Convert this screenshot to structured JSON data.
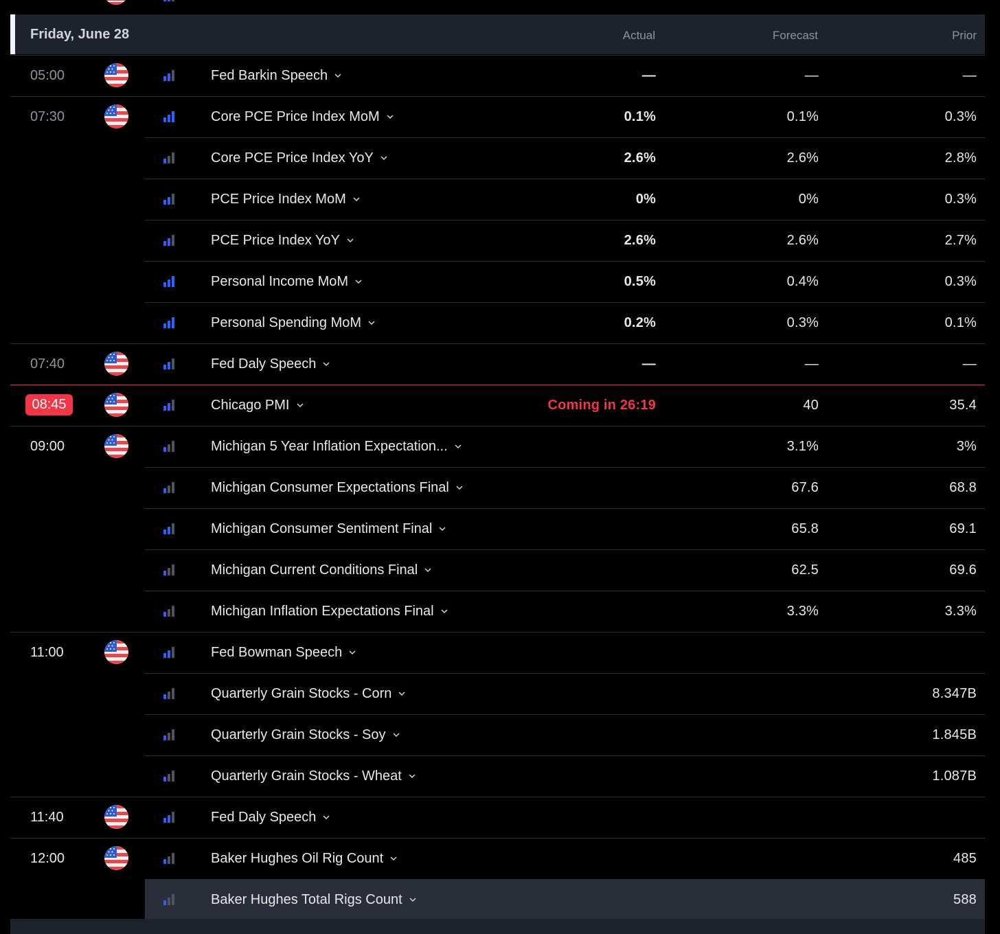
{
  "header": {
    "date": "Friday, June 28",
    "col_actual": "Actual",
    "col_forecast": "Forecast",
    "col_prior": "Prior"
  },
  "colors": {
    "background": "#000000",
    "header_bg": "#1e222d",
    "separator": "#2a2e39",
    "current_time": "#f23645",
    "importance_high": "#2962ff",
    "importance_low": "#50535e"
  },
  "rows": [
    {
      "time": "05:00",
      "flag": "us-flag-icon",
      "importance": 2,
      "event": "Fed Barkin Speech",
      "actual": "—",
      "forecast": "—",
      "prior": "—"
    },
    {
      "time": "07:30",
      "flag": "us-flag-icon",
      "importance": 3,
      "event": "Core PCE Price Index MoM",
      "actual": "0.1%",
      "forecast": "0.1%",
      "prior": "0.3%"
    },
    {
      "time": "",
      "importance": 1,
      "event": "Core PCE Price Index YoY",
      "actual": "2.6%",
      "forecast": "2.6%",
      "prior": "2.8%"
    },
    {
      "time": "",
      "importance": 2,
      "event": "PCE Price Index MoM",
      "actual": "0%",
      "forecast": "0%",
      "prior": "0.3%"
    },
    {
      "time": "",
      "importance": 2,
      "event": "PCE Price Index YoY",
      "actual": "2.6%",
      "forecast": "2.6%",
      "prior": "2.7%"
    },
    {
      "time": "",
      "importance": 3,
      "event": "Personal Income MoM",
      "actual": "0.5%",
      "forecast": "0.4%",
      "prior": "0.3%"
    },
    {
      "time": "",
      "importance": 3,
      "event": "Personal Spending MoM",
      "actual": "0.2%",
      "forecast": "0.3%",
      "prior": "0.1%"
    },
    {
      "time": "07:40",
      "flag": "us-flag-icon",
      "importance": 2,
      "event": "Fed Daly Speech",
      "actual": "—",
      "forecast": "—",
      "prior": "—"
    },
    {
      "time": "08:45",
      "flag": "us-flag-icon",
      "importance": 2,
      "event": "Chicago PMI",
      "actual": "Coming in 26:19",
      "forecast": "40",
      "prior": "35.4",
      "current": true
    },
    {
      "time": "09:00",
      "flag": "us-flag-icon",
      "importance": 1,
      "event": "Michigan 5 Year Inflation Expectation...",
      "actual": "",
      "forecast": "3.1%",
      "prior": "3%"
    },
    {
      "time": "",
      "importance": 1,
      "event": "Michigan Consumer Expectations Final",
      "actual": "",
      "forecast": "67.6",
      "prior": "68.8"
    },
    {
      "time": "",
      "importance": 2,
      "event": "Michigan Consumer Sentiment Final",
      "actual": "",
      "forecast": "65.8",
      "prior": "69.1"
    },
    {
      "time": "",
      "importance": 1,
      "event": "Michigan Current Conditions Final",
      "actual": "",
      "forecast": "62.5",
      "prior": "69.6"
    },
    {
      "time": "",
      "importance": 1,
      "event": "Michigan Inflation Expectations Final",
      "actual": "",
      "forecast": "3.3%",
      "prior": "3.3%"
    },
    {
      "time": "11:00",
      "flag": "us-flag-icon",
      "importance": 2,
      "event": "Fed Bowman Speech",
      "actual": "",
      "forecast": "",
      "prior": ""
    },
    {
      "time": "",
      "importance": 1,
      "event": "Quarterly Grain Stocks - Corn",
      "actual": "",
      "forecast": "",
      "prior": "8.347B"
    },
    {
      "time": "",
      "importance": 1,
      "event": "Quarterly Grain Stocks - Soy",
      "actual": "",
      "forecast": "",
      "prior": "1.845B"
    },
    {
      "time": "",
      "importance": 1,
      "event": "Quarterly Grain Stocks - Wheat",
      "actual": "",
      "forecast": "",
      "prior": "1.087B"
    },
    {
      "time": "11:40",
      "flag": "us-flag-icon",
      "importance": 2,
      "event": "Fed Daly Speech",
      "actual": "",
      "forecast": "",
      "prior": ""
    },
    {
      "time": "12:00",
      "flag": "us-flag-icon",
      "importance": 1,
      "event": "Baker Hughes Oil Rig Count",
      "actual": "",
      "forecast": "",
      "prior": "485"
    },
    {
      "time": "",
      "importance": 1,
      "event": "Baker Hughes Total Rigs Count",
      "actual": "",
      "forecast": "",
      "prior": "588",
      "highlight": true
    }
  ]
}
